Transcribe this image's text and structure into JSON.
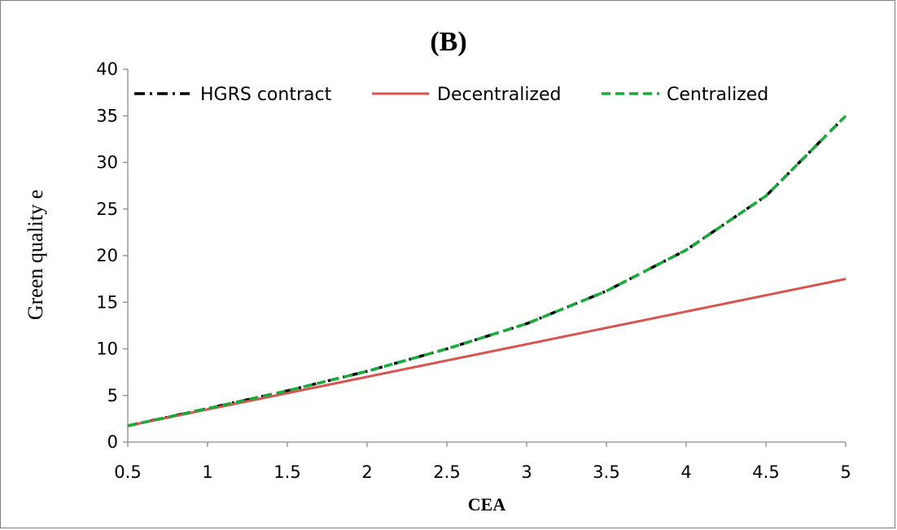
{
  "chart_data": {
    "type": "line",
    "title": "(B)",
    "xlabel": "CEA",
    "ylabel": "Green quality e",
    "x": [
      0.5,
      1,
      1.5,
      2,
      2.5,
      3,
      3.5,
      4,
      4.5,
      5
    ],
    "x_ticks": [
      "0.5",
      "1",
      "1.5",
      "2",
      "2.5",
      "3",
      "3.5",
      "4",
      "4.5",
      "5"
    ],
    "y_ticks": [
      "0",
      "5",
      "10",
      "15",
      "20",
      "25",
      "30",
      "35",
      "40"
    ],
    "xlim": [
      0.5,
      5
    ],
    "ylim": [
      0,
      40
    ],
    "grid": false,
    "legend_position": "top",
    "series": [
      {
        "name": "HGRS contract",
        "color": "#000000",
        "style": "dash-dot",
        "values": [
          1.75,
          3.6,
          5.5,
          7.6,
          10.0,
          12.7,
          16.2,
          20.6,
          26.4,
          35.0
        ]
      },
      {
        "name": "Decentralized",
        "color": "#d9534f",
        "style": "solid",
        "values": [
          1.75,
          3.5,
          5.25,
          7.0,
          8.75,
          10.5,
          12.25,
          14.0,
          15.75,
          17.5
        ]
      },
      {
        "name": "Centralized",
        "color": "#1aab3c",
        "style": "dashed",
        "values": [
          1.75,
          3.6,
          5.5,
          7.6,
          10.0,
          12.7,
          16.2,
          20.6,
          26.4,
          35.0
        ]
      }
    ]
  }
}
